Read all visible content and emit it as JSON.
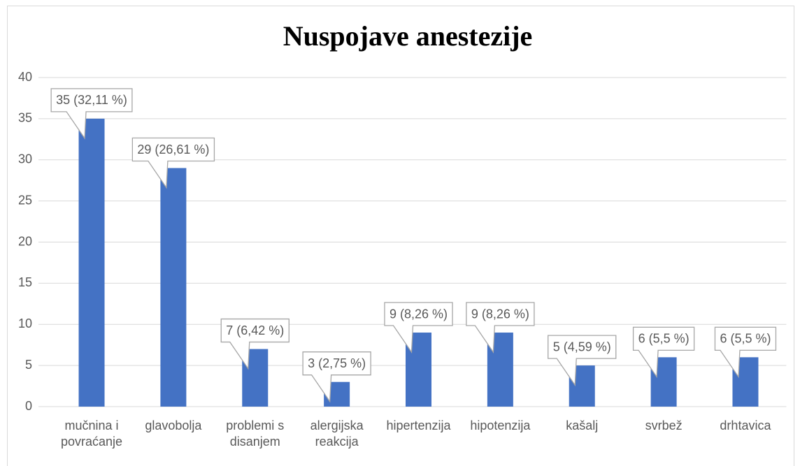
{
  "chart_data": {
    "type": "bar",
    "title": "Nuspojave anestezije",
    "categories": [
      "mučnina i povraćanje",
      "glavobolja",
      "problemi s disanjem",
      "alergijska reakcija",
      "hipertenzija",
      "hipotenzija",
      "kašalj",
      "svrbež",
      "drhtavica"
    ],
    "values": [
      35,
      29,
      7,
      3,
      9,
      9,
      5,
      6,
      6
    ],
    "value_labels": [
      "35 (32,11 %)",
      "29 (26,61 %)",
      "7 (6,42 %)",
      "3 (2,75 %)",
      "9 (8,26 %)",
      "9 (8,26 %)",
      "5 (4,59 %)",
      "6 (5,5 %)",
      "6 (5,5 %)"
    ],
    "color": "#4472c4",
    "ylim": [
      0,
      40
    ],
    "yticks": [
      0,
      5,
      10,
      15,
      20,
      25,
      30,
      35,
      40
    ],
    "grid": true
  }
}
